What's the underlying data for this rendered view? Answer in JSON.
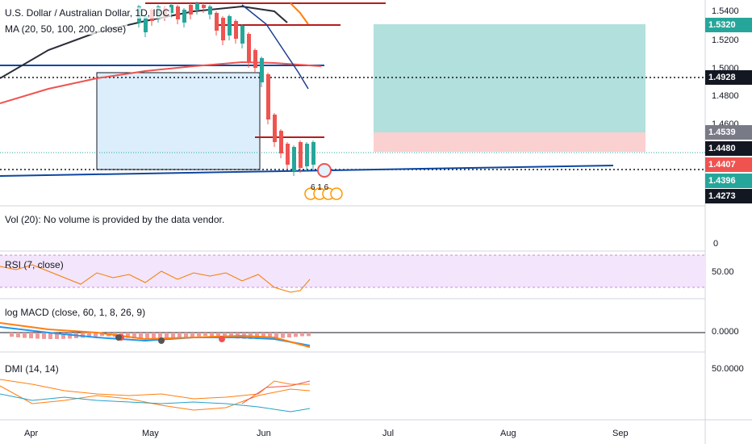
{
  "legends": {
    "symbol": "U.S. Dollar / Australian Dollar, 1D, IDC",
    "ma": "MA (20, 50, 100, 200, close)",
    "vol": "Vol (20): No volume is provided by the data vendor.",
    "rsi": "RSI (7, close)",
    "macd": "log MACD (close, 60, 1, 8, 26, 9)",
    "dmi": "DMI (14, 14)"
  },
  "price_axis": {
    "labels": [
      "1.5400",
      "1.5200",
      "1.5000",
      "1.4800",
      "1.4600"
    ],
    "tags": [
      {
        "value": "1.5320",
        "color": "#26a69a"
      },
      {
        "value": "1.4928",
        "color": "#131722"
      },
      {
        "value": "1.4539",
        "color": "#787b86"
      },
      {
        "value": "1.4480",
        "color": "#131722"
      },
      {
        "value": "1.4407",
        "color": "#ef5350"
      },
      {
        "value": "1.4396",
        "color": "#26a69a"
      },
      {
        "value": "1.4273",
        "color": "#131722"
      }
    ]
  },
  "vol_axis": {
    "label": "0"
  },
  "rsi_axis": {
    "label": "50.00"
  },
  "macd_axis": {
    "label": "0.0000"
  },
  "dmi_axis": {
    "label": "50.0000"
  },
  "time_axis": {
    "labels": [
      "Apr",
      "May",
      "Jun",
      "Jul",
      "Aug",
      "Sep"
    ]
  },
  "event_badge": {
    "text": "6 1 6"
  },
  "colors": {
    "bull": "#26a69a",
    "bear": "#ef5350",
    "ma_dark": "#2a2e39",
    "ma_red": "#ef5350",
    "ma_blue": "#1e3f8a",
    "rsi_bg": "#f3e5fb",
    "rsi_line": "#f57c00",
    "macd_fast": "#ff7f0e",
    "macd_slow": "#2196f3",
    "dmi_orange": "#ff7f0e",
    "dmi_red": "#ef5350",
    "dmi_blue": "#26a0c8",
    "target_zone": "#b2e0dc",
    "stop_zone": "#fbd0d0",
    "box_zone": "#dceefb",
    "hline_blue": "#0d47a1",
    "hline_red": "#b71c1c"
  }
}
